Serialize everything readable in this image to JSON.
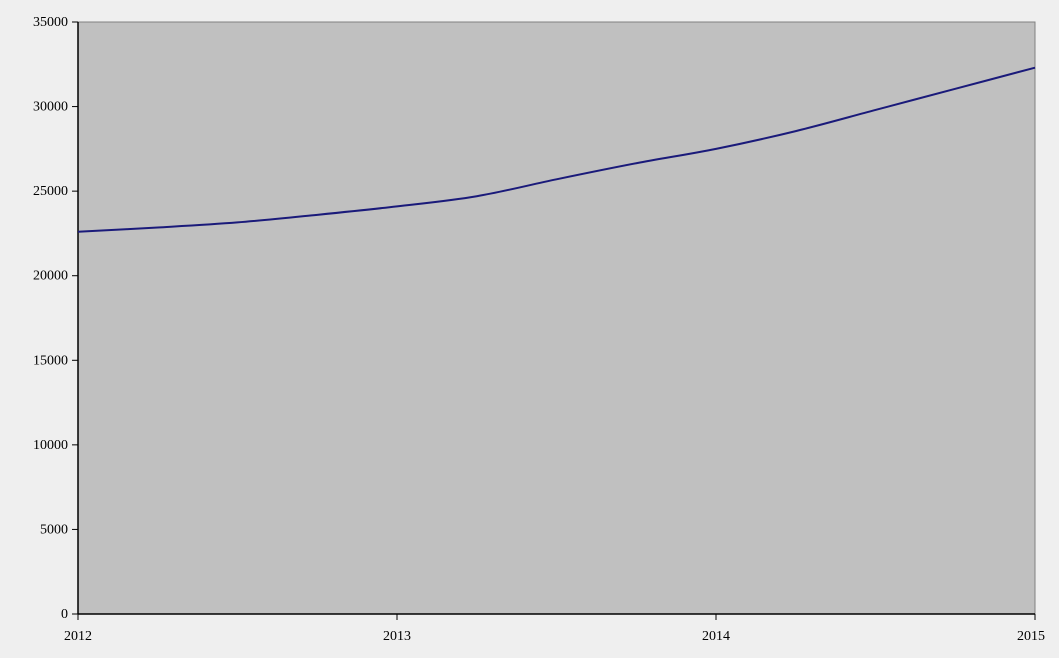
{
  "chart_data": {
    "type": "line",
    "title": "",
    "xlabel": "",
    "ylabel": "",
    "x": [
      2012,
      2012.25,
      2012.5,
      2012.75,
      2013,
      2013.25,
      2013.5,
      2013.75,
      2014,
      2014.25,
      2014.5,
      2014.75,
      2015
    ],
    "series": [
      {
        "values": [
          22600,
          22850,
          23150,
          23600,
          24100,
          24700,
          25700,
          26650,
          27500,
          28550,
          29800,
          31050,
          32300
        ]
      }
    ],
    "xlim": [
      2012,
      2015
    ],
    "ylim": [
      0,
      35000
    ],
    "xticks": [
      "2012",
      "2013",
      "2014",
      "2015"
    ],
    "yticks": [
      "0",
      "5000",
      "10000",
      "15000",
      "20000",
      "25000",
      "30000",
      "35000"
    ],
    "grid": false,
    "legend": "none",
    "colors": {
      "line": "#1a1a7a",
      "plot_background": "#c0c0c0",
      "page_background": "#efefef",
      "axis": "#000000"
    }
  }
}
